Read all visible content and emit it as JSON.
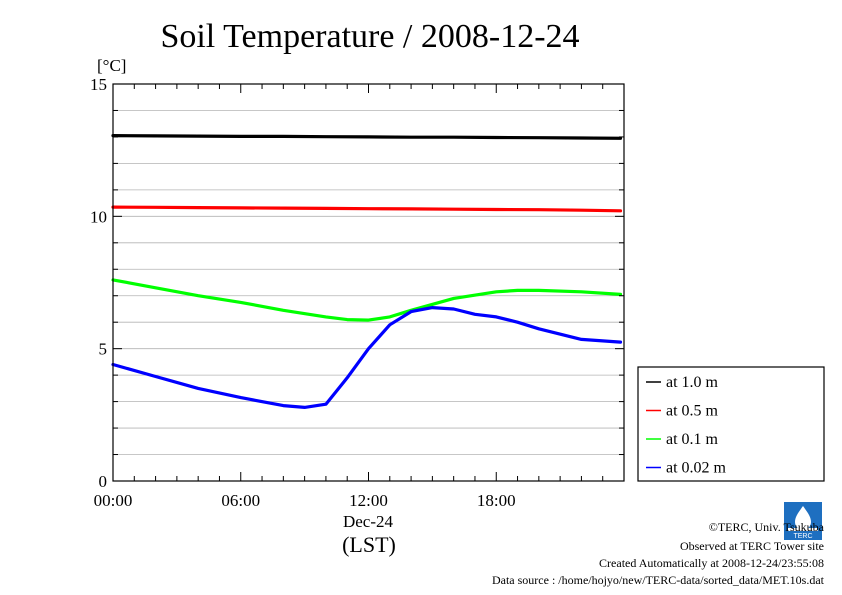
{
  "chart_data": {
    "type": "line",
    "title": "Soil Temperature / 2008-12-24",
    "ylabel": "[°C]",
    "xlabel": "(LST)",
    "x_date_label": "Dec-24",
    "ylim": [
      0,
      15
    ],
    "xlim": [
      "00:00",
      "24:00"
    ],
    "y_ticks": [
      "0",
      "5",
      "10",
      "15"
    ],
    "x_ticks": [
      "00:00",
      "06:00",
      "12:00",
      "18:00"
    ],
    "grid": true,
    "legend_position": "lower-right outside",
    "series": [
      {
        "name": "at 1.0 m",
        "color": "#000000",
        "x": [
          "00:00",
          "02:00",
          "04:00",
          "06:00",
          "08:00",
          "10:00",
          "12:00",
          "14:00",
          "16:00",
          "18:00",
          "20:00",
          "22:00",
          "23:50"
        ],
        "values": [
          13.05,
          13.04,
          13.03,
          13.02,
          13.02,
          13.01,
          13.0,
          12.99,
          12.99,
          12.98,
          12.97,
          12.96,
          12.95
        ]
      },
      {
        "name": "at 0.5 m",
        "color": "#ff0000",
        "x": [
          "00:00",
          "02:00",
          "04:00",
          "06:00",
          "08:00",
          "10:00",
          "12:00",
          "14:00",
          "16:00",
          "18:00",
          "20:00",
          "22:00",
          "23:50"
        ],
        "values": [
          10.35,
          10.34,
          10.33,
          10.32,
          10.31,
          10.3,
          10.29,
          10.28,
          10.27,
          10.26,
          10.25,
          10.23,
          10.21
        ]
      },
      {
        "name": "at 0.1 m",
        "color": "#00ff00",
        "x": [
          "00:00",
          "02:00",
          "04:00",
          "06:00",
          "08:00",
          "10:00",
          "11:00",
          "12:00",
          "13:00",
          "14:00",
          "16:00",
          "18:00",
          "19:00",
          "20:00",
          "22:00",
          "23:50"
        ],
        "values": [
          7.6,
          7.3,
          7.0,
          6.75,
          6.45,
          6.2,
          6.1,
          6.08,
          6.2,
          6.45,
          6.9,
          7.15,
          7.2,
          7.2,
          7.15,
          7.05
        ]
      },
      {
        "name": "at 0.02 m",
        "color": "#0000ff",
        "x": [
          "00:00",
          "02:00",
          "04:00",
          "06:00",
          "08:00",
          "09:00",
          "10:00",
          "11:00",
          "12:00",
          "13:00",
          "14:00",
          "15:00",
          "16:00",
          "17:00",
          "18:00",
          "19:00",
          "20:00",
          "22:00",
          "23:50"
        ],
        "values": [
          4.4,
          3.95,
          3.5,
          3.15,
          2.85,
          2.78,
          2.9,
          3.9,
          5.0,
          5.9,
          6.4,
          6.55,
          6.5,
          6.3,
          6.2,
          6.0,
          5.75,
          5.35,
          5.25
        ]
      }
    ]
  },
  "footer": {
    "copyright": "©TERC, Univ. Tsukuba",
    "observed": "Observed at TERC Tower site",
    "created": "Created Automatically at 2008-12-24/23:55:08",
    "source": "Data source : /home/hojyo/new/TERC-data/sorted_data/MET.10s.dat",
    "logo_text": "TERC"
  }
}
